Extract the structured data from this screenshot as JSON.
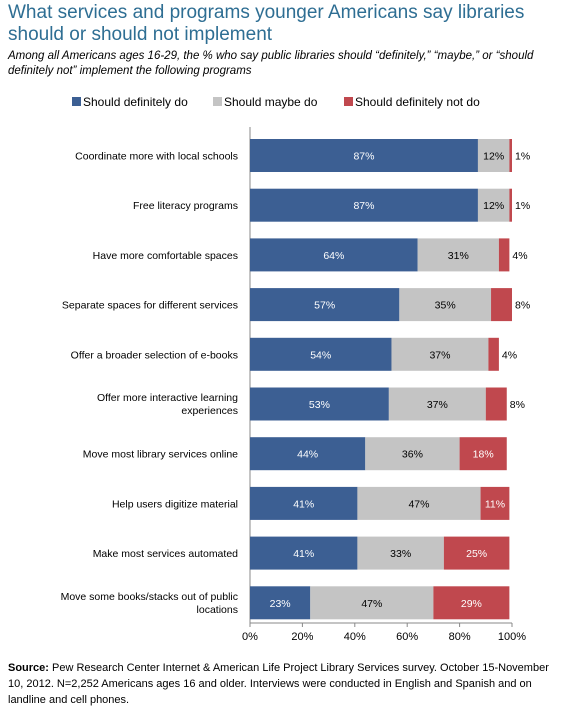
{
  "title": "What services and programs younger Americans say libraries should or should not implement",
  "subtitle": "Among all Americans ages 16-29, the % who say public libraries should “definitely,” “maybe,” or “should definitely not” implement the following programs",
  "source_label": "Source:",
  "source_text": " Pew Research Center Internet & American Life Project Library Services survey. October 15-November 10, 2012. N=2,252 Americans ages 16 and older. Interviews were conducted in English and Spanish and on landline and cell phones.",
  "colors": {
    "definitely": "#3c5f93",
    "maybe": "#c4c4c4",
    "not": "#c0484e"
  },
  "chart_data": {
    "type": "bar",
    "orientation": "horizontal",
    "stacked": true,
    "categories": [
      "Coordinate more with local schools",
      "Free literacy programs",
      "Have more comfortable spaces",
      "Separate spaces for different services",
      "Offer a broader selection of e-books",
      "Offer more interactive learning experiences",
      "Move most library services online",
      "Help users digitize material",
      "Make most services automated",
      "Move some books/stacks out of public locations"
    ],
    "series": [
      {
        "name": "Should definitely do",
        "values": [
          87,
          87,
          64,
          57,
          54,
          53,
          44,
          41,
          41,
          23
        ]
      },
      {
        "name": "Should maybe do",
        "values": [
          12,
          12,
          31,
          35,
          37,
          37,
          36,
          47,
          33,
          47
        ]
      },
      {
        "name": "Should definitely not do",
        "values": [
          1,
          1,
          4,
          8,
          4,
          8,
          18,
          11,
          25,
          29
        ]
      }
    ],
    "xlim": [
      0,
      100
    ],
    "xticks": [
      "0%",
      "20%",
      "40%",
      "60%",
      "80%",
      "100%"
    ],
    "legend_position": "top",
    "grid": false
  }
}
